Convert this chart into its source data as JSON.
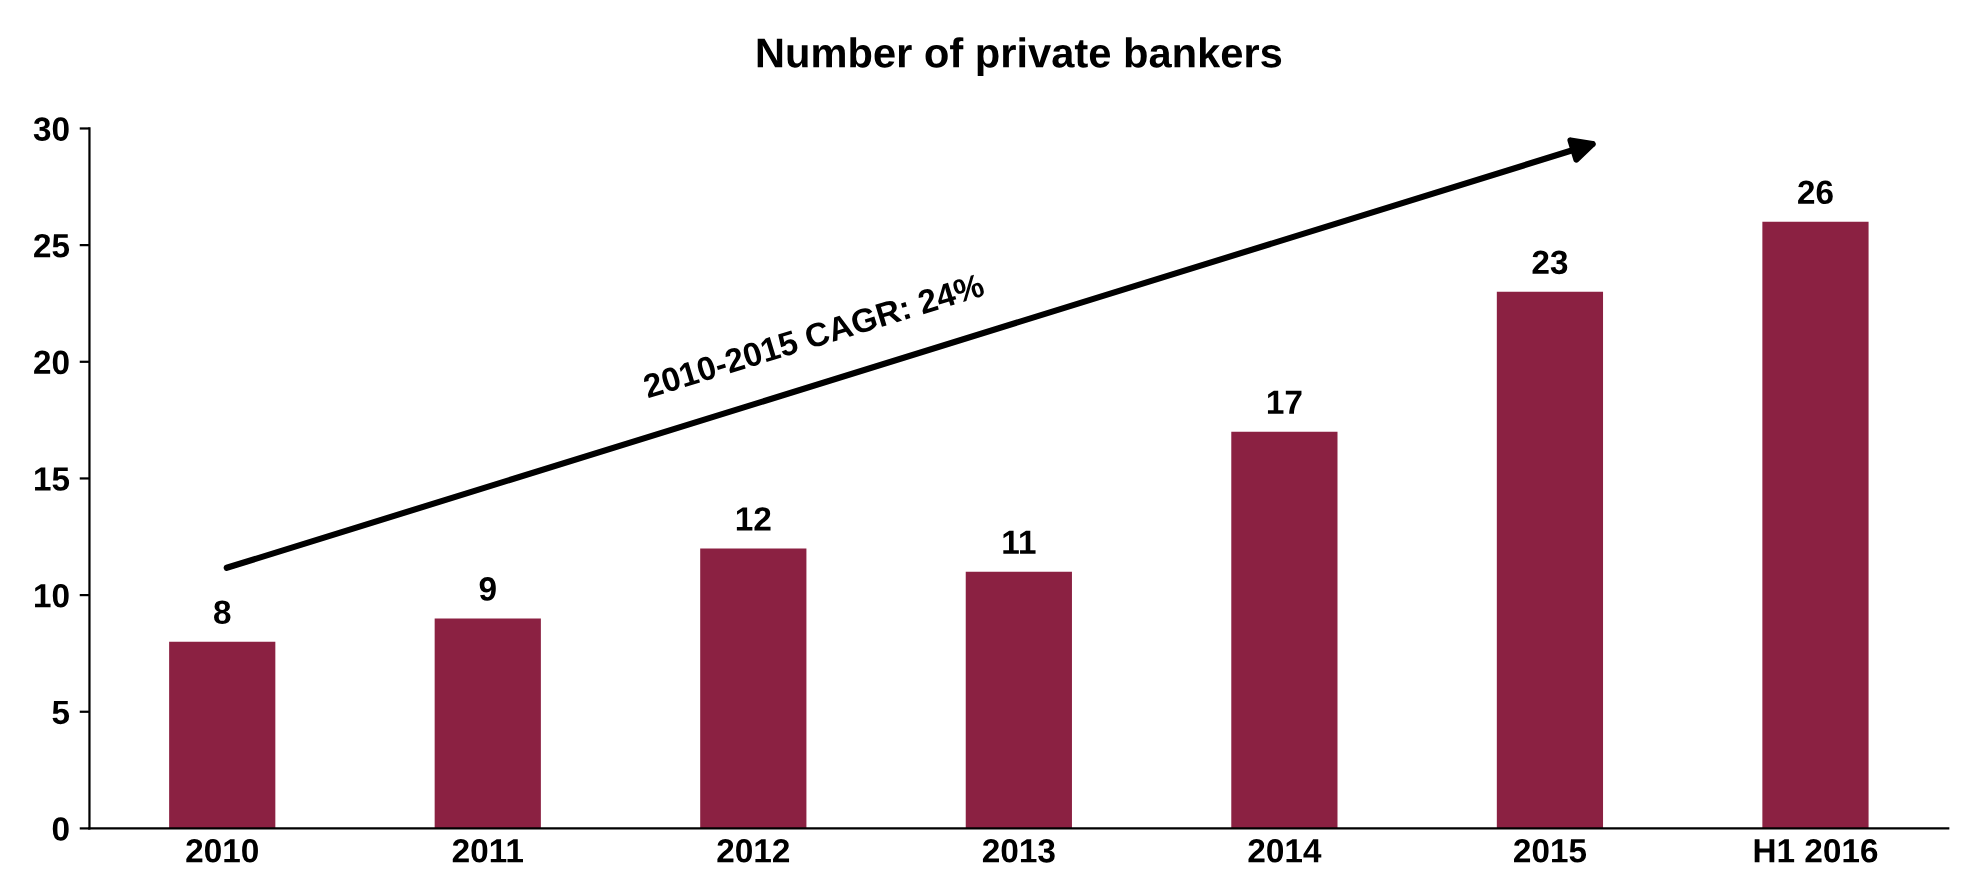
{
  "chart_data": {
    "type": "bar",
    "title": "Number of private bankers",
    "categories": [
      "2010",
      "2011",
      "2012",
      "2013",
      "2014",
      "2015",
      "H1 2016"
    ],
    "values": [
      8,
      9,
      12,
      11,
      17,
      23,
      26
    ],
    "color": "#8b2142",
    "ylim": [
      0,
      30
    ],
    "yticks": [
      0,
      5,
      10,
      15,
      20,
      25,
      30
    ],
    "grid": false,
    "data_labels": true,
    "annotations": [
      "2010-2015 CAGR: 24%"
    ]
  }
}
